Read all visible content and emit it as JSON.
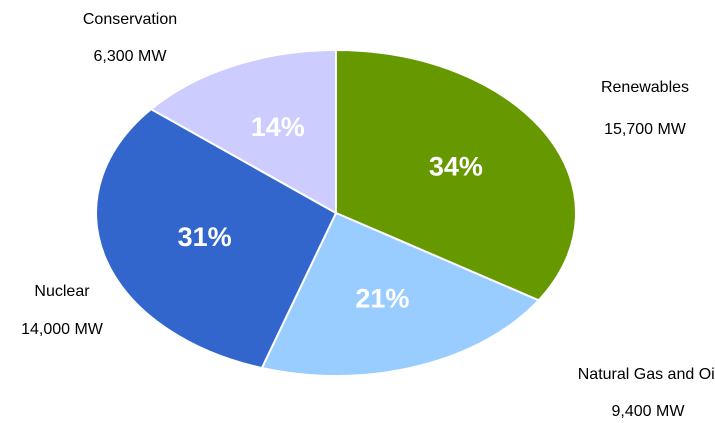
{
  "chart_data": {
    "type": "pie",
    "categories": [
      "Renewables",
      "Natural Gas and Oil",
      "Nuclear",
      "Conservation"
    ],
    "values": [
      34,
      21,
      31,
      14
    ],
    "value_labels": [
      "34%",
      "21%",
      "31%",
      "14%"
    ],
    "capacities": [
      15700,
      9400,
      14000,
      6300
    ],
    "capacity_labels": [
      "15,700 MW",
      "9,400 MW",
      "14,000 MW",
      "6,300 MW"
    ],
    "colors": [
      "#669900",
      "#99ccff",
      "#3366cc",
      "#ccccff"
    ]
  }
}
